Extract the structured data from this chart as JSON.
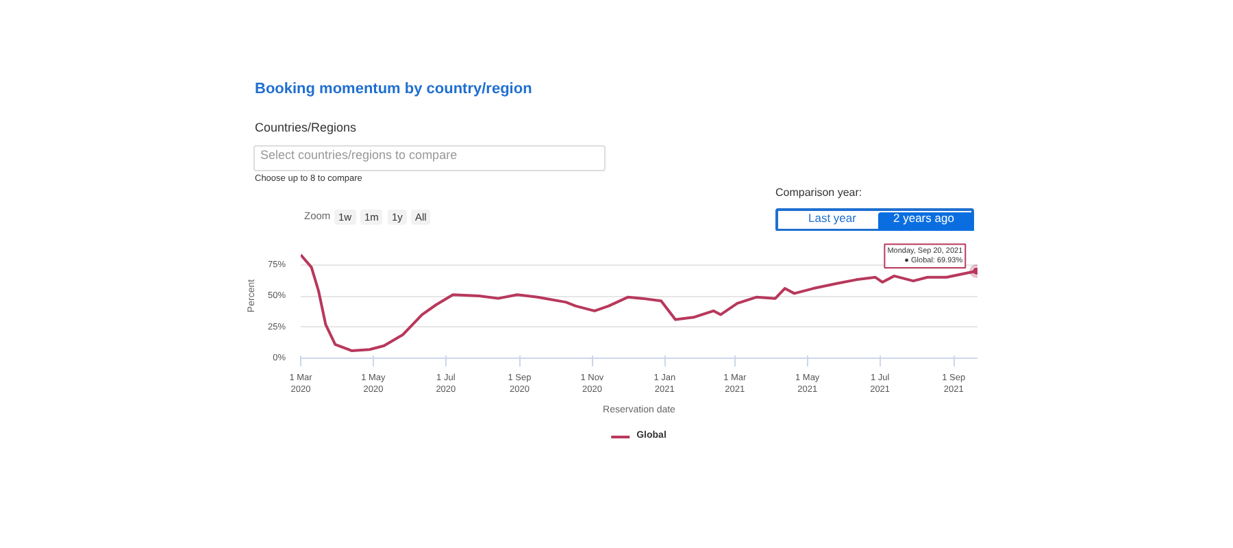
{
  "chart_data": {
    "type": "line",
    "title": "Booking momentum by country/region",
    "xlabel": "Reservation date",
    "ylabel": "Percent",
    "x": [
      "2020-03-01",
      "2020-03-10",
      "2020-03-16",
      "2020-03-22",
      "2020-03-30",
      "2020-04-13",
      "2020-04-28",
      "2020-05-10",
      "2020-05-26",
      "2020-06-11",
      "2020-06-23",
      "2020-07-07",
      "2020-07-29",
      "2020-08-14",
      "2020-08-30",
      "2020-09-16",
      "2020-10-10",
      "2020-10-18",
      "2020-11-03",
      "2020-11-15",
      "2020-12-01",
      "2020-12-13",
      "2020-12-29",
      "2021-01-10",
      "2021-01-26",
      "2021-02-11",
      "2021-02-17",
      "2021-03-03",
      "2021-03-19",
      "2021-04-04",
      "2021-04-12",
      "2021-04-20",
      "2021-05-06",
      "2021-05-26",
      "2021-06-11",
      "2021-06-27",
      "2021-07-03",
      "2021-07-13",
      "2021-07-29",
      "2021-08-10",
      "2021-08-26",
      "2021-09-20"
    ],
    "series": [
      {
        "name": "Global",
        "color": "#b8385c",
        "values": [
          83,
          73,
          54,
          27,
          11,
          6,
          7,
          10,
          19,
          35,
          43,
          51,
          50,
          48,
          51,
          49,
          45,
          42,
          38,
          42,
          49,
          48,
          46,
          31,
          33,
          38,
          35,
          44,
          49,
          48,
          56,
          52,
          56,
          60,
          63,
          65,
          61,
          66,
          62,
          65,
          65,
          69.93
        ]
      }
    ],
    "xlim": [
      "2020-03-01",
      "2021-09-21"
    ],
    "xticks": [
      {
        "value": "2020-03-01",
        "label": "1 Mar\n2020"
      },
      {
        "value": "2020-05-01",
        "label": "1 May\n2020"
      },
      {
        "value": "2020-07-01",
        "label": "1 Jul\n2020"
      },
      {
        "value": "2020-09-01",
        "label": "1 Sep\n2020"
      },
      {
        "value": "2020-11-01",
        "label": "1 Nov\n2020"
      },
      {
        "value": "2021-01-01",
        "label": "1 Jan\n2021"
      },
      {
        "value": "2021-03-01",
        "label": "1 Mar\n2021"
      },
      {
        "value": "2021-05-01",
        "label": "1 May\n2021"
      },
      {
        "value": "2021-07-01",
        "label": "1 Jul\n2021"
      },
      {
        "value": "2021-09-01",
        "label": "1 Sep\n2021"
      }
    ],
    "ylim": [
      0,
      100
    ],
    "yticks": [
      {
        "value": 0,
        "label": "0%"
      },
      {
        "value": 25,
        "label": "25%"
      },
      {
        "value": 50,
        "label": "50%"
      },
      {
        "value": 75,
        "label": "75%"
      }
    ],
    "grid": "y",
    "legend": "bottom",
    "marker": "none",
    "line_style": "solid",
    "annotations": [
      {
        "text": "Monday, Sep 20, 2021\n● Global: 69.93%",
        "x": "2021-09-20",
        "y": 69.93
      },
      "Countries/Regions",
      "Select countries/regions to compare",
      "Choose up to 8 to compare",
      "Zoom",
      "1w",
      "1m",
      "1y",
      "All",
      "Comparison year:",
      "Last year",
      "2 years ago"
    ]
  }
}
